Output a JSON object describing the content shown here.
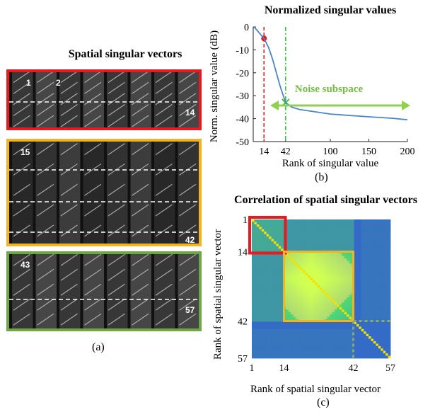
{
  "figure": {
    "panel_a": {
      "title": "Spatial singular vectors",
      "label": "(a)",
      "groups": [
        {
          "color": "#e8191f",
          "start": "1",
          "second": "2",
          "end": "14"
        },
        {
          "color": "#f4b323",
          "start": "15",
          "end": "42"
        },
        {
          "color": "#6fa646",
          "start": "43",
          "end": "57"
        }
      ]
    },
    "panel_b": {
      "title": "Normalized singular values",
      "label": "(b)",
      "annotation": "Noise subspace",
      "marker_red": "14",
      "marker_green": "42"
    },
    "panel_c": {
      "title": "Correlation of spatial singular vectors",
      "label": "(c)"
    }
  },
  "chart_data": [
    {
      "type": "line",
      "title": "Normalized singular values",
      "xlabel": "Rank of singular value",
      "ylabel": "Norm. singular value (dB)",
      "xlim": [
        0,
        200
      ],
      "ylim": [
        -50,
        0
      ],
      "xticks": [
        "14",
        "42",
        "100",
        "150",
        "200"
      ],
      "yticks": [
        "0",
        "-10",
        "-20",
        "-30",
        "-40",
        "-50"
      ],
      "series": [
        {
          "color": "#4a86c8",
          "x": [
            1,
            5,
            10,
            14,
            20,
            25,
            30,
            35,
            40,
            42,
            50,
            60,
            80,
            100,
            120,
            150,
            180,
            200
          ],
          "y": [
            0,
            -1.5,
            -3.5,
            -5,
            -9,
            -14,
            -20,
            -26,
            -31,
            -33,
            -35,
            -36,
            -37,
            -38,
            -38.5,
            -39.2,
            -39.8,
            -40.5
          ]
        }
      ],
      "markers": [
        {
          "x": 14,
          "y": -5,
          "color": "#e8191f",
          "style": "dashed-vline-with-dot"
        },
        {
          "x": 42,
          "y": -33,
          "color": "#33cc33",
          "style": "dashdot-vline-with-x"
        }
      ],
      "grid": false
    },
    {
      "type": "heatmap",
      "title": "Correlation of spatial singular vectors",
      "xlabel": "Rank of spatial singular vector",
      "ylabel": "Rank of spatial singular vector",
      "xticks": [
        "1",
        "14",
        "42",
        "57"
      ],
      "yticks": [
        "1",
        "14",
        "42",
        "57"
      ],
      "size": 57,
      "boxes": [
        {
          "from": 1,
          "to": 14,
          "color": "#e8191f"
        },
        {
          "from": 14,
          "to": 42,
          "color": "#f4b323"
        }
      ]
    }
  ]
}
